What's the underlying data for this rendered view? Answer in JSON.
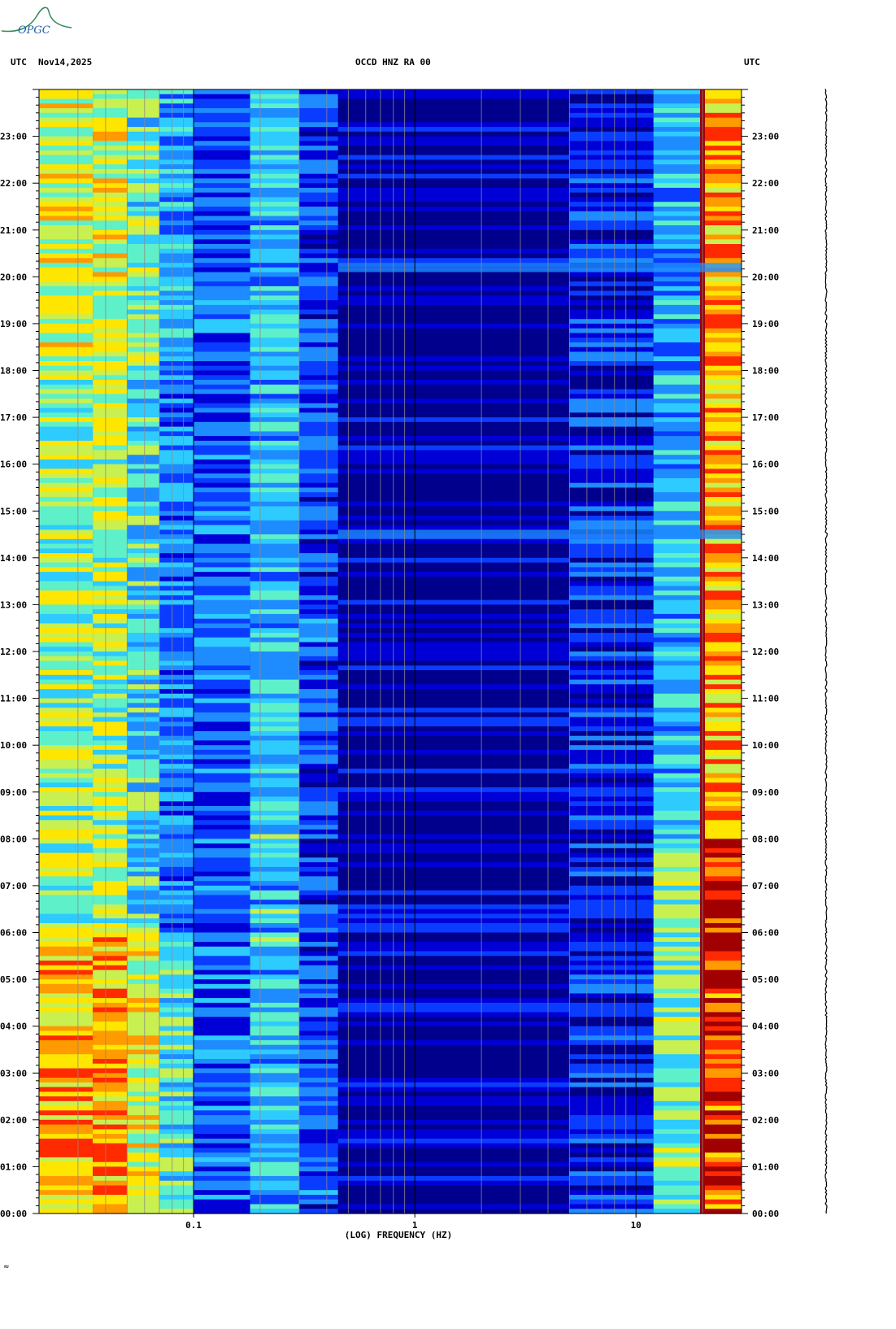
{
  "logo_text": "OPGC",
  "header": {
    "left_label": "UTC",
    "date": "Nov14,2025",
    "station": "OCCD HNZ RA 00",
    "right_label": "UTC"
  },
  "footer_mark": "≈",
  "chart_data": {
    "type": "heatmap",
    "title": "OCCD HNZ RA 00",
    "xlabel": "(LOG) FREQUENCY (HZ)",
    "ylabel": "UTC",
    "x_scale": "log",
    "xlim": [
      0.02,
      30
    ],
    "ylim": [
      "00:00",
      "24:00"
    ],
    "x_major_ticks": [
      {
        "value": 0.1,
        "label": "0.1"
      },
      {
        "value": 1,
        "label": "1"
      },
      {
        "value": 10,
        "label": "10"
      }
    ],
    "y_tick_labels": [
      "00:00",
      "01:00",
      "02:00",
      "03:00",
      "04:00",
      "05:00",
      "06:00",
      "07:00",
      "08:00",
      "09:00",
      "10:00",
      "11:00",
      "12:00",
      "13:00",
      "14:00",
      "15:00",
      "16:00",
      "17:00",
      "18:00",
      "19:00",
      "20:00",
      "21:00",
      "22:00",
      "23:00"
    ],
    "colormap": [
      "#00008c",
      "#0000d6",
      "#0a3cff",
      "#1e8cff",
      "#2ecbff",
      "#5ef0c8",
      "#c8f050",
      "#ffe600",
      "#ff9a00",
      "#ff2a00",
      "#a00000"
    ],
    "spectral_bands": [
      {
        "from_hz": 0.02,
        "to_hz": 0.035,
        "level": 0.6
      },
      {
        "from_hz": 0.035,
        "to_hz": 0.05,
        "level": 0.62
      },
      {
        "from_hz": 0.05,
        "to_hz": 0.07,
        "level": 0.5
      },
      {
        "from_hz": 0.07,
        "to_hz": 0.1,
        "level": 0.35
      },
      {
        "from_hz": 0.1,
        "to_hz": 0.18,
        "level": 0.25
      },
      {
        "from_hz": 0.18,
        "to_hz": 0.3,
        "level": 0.4
      },
      {
        "from_hz": 0.3,
        "to_hz": 0.45,
        "level": 0.22
      },
      {
        "from_hz": 0.45,
        "to_hz": 5,
        "level": 0.06
      },
      {
        "from_hz": 5,
        "to_hz": 12,
        "level": 0.18
      },
      {
        "from_hz": 12,
        "to_hz": 19.5,
        "level": 0.35
      },
      {
        "from_hz": 19.5,
        "to_hz": 20.5,
        "level": 1.0
      },
      {
        "from_hz": 20.5,
        "to_hz": 30,
        "level": 0.75
      }
    ],
    "events_utc_hours": [
      14.5,
      20.2
    ]
  }
}
